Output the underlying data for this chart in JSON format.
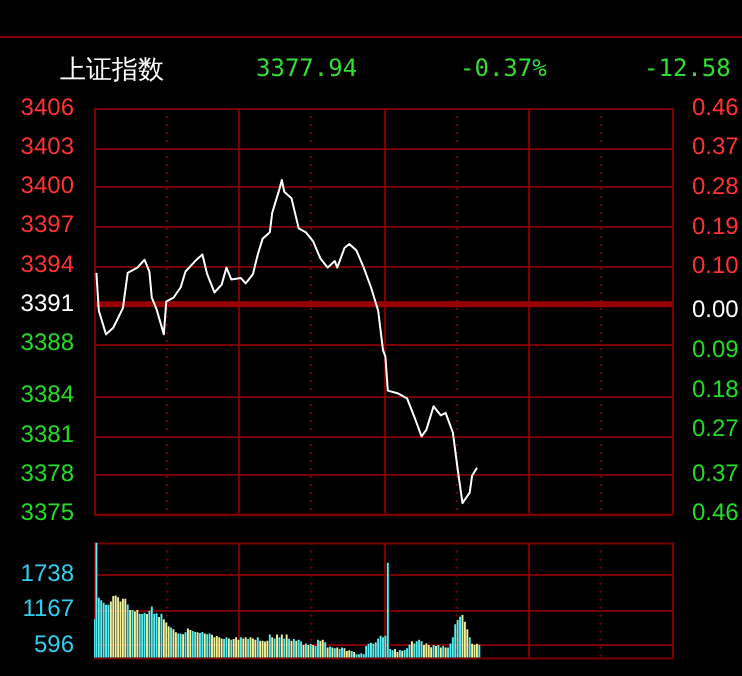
{
  "chart_data": [
    {
      "type": "line",
      "title": "上证指数",
      "annotations": [
        "3377.94",
        "-0.37%",
        "-12.58"
      ],
      "categories": [
        null,
        null,
        null,
        null,
        null,
        null,
        null,
        null,
        null,
        null,
        null,
        null,
        null,
        null,
        null,
        null,
        null,
        null,
        null,
        null,
        null,
        null,
        null,
        null,
        null,
        null,
        null,
        null,
        null,
        null,
        null,
        null,
        null,
        null,
        null,
        null,
        null,
        null,
        null,
        null,
        null,
        null,
        null,
        null,
        null,
        null,
        null,
        null,
        null,
        null,
        null,
        null,
        null,
        null,
        null,
        null,
        null,
        null,
        null,
        null,
        null,
        null,
        null,
        null,
        null,
        null,
        null,
        null,
        null,
        null,
        null,
        null,
        null,
        null,
        null,
        null,
        null,
        null,
        null,
        null,
        null,
        null,
        null,
        null,
        null,
        null,
        null,
        null,
        null,
        null,
        null,
        null,
        null,
        null,
        null,
        null,
        null,
        null,
        null,
        null,
        null,
        null,
        null,
        null,
        null,
        null,
        null,
        null,
        null,
        null,
        null,
        null,
        null,
        null,
        null,
        null,
        null,
        null,
        null,
        null,
        null,
        null,
        null,
        null,
        null,
        null,
        null,
        null,
        null,
        null,
        null,
        null,
        null,
        null,
        null,
        null,
        null,
        null,
        null,
        null,
        null,
        null,
        null,
        null,
        null,
        null,
        null,
        null,
        null,
        null,
        null,
        null,
        null,
        null,
        null,
        null,
        null,
        null,
        null,
        null,
        null,
        null,
        null,
        null,
        null,
        null,
        null,
        null,
        null,
        null,
        null,
        null,
        null,
        null,
        null,
        null,
        null,
        null,
        null,
        null,
        null,
        null,
        null,
        null,
        null,
        null,
        null,
        null,
        null,
        null,
        null,
        null,
        null,
        null,
        null,
        null,
        null,
        null,
        null,
        null,
        null,
        null,
        null,
        null,
        null,
        null,
        null,
        null,
        null,
        null,
        null,
        null,
        null,
        null,
        null,
        null,
        null,
        null,
        null,
        null,
        null,
        null,
        null,
        null,
        null,
        null,
        null,
        null,
        null,
        null,
        null,
        null,
        null,
        null,
        null,
        null,
        null,
        null,
        null,
        null,
        null
      ],
      "series": [
        {
          "color": "#ffffff",
          "values": [
            null,
            3393.4,
            3390.5,
            null,
            null,
            3388.7,
            null,
            null,
            3389.2,
            null,
            null,
            null,
            3390.7,
            null,
            3393.4,
            null,
            null,
            null,
            3393.8,
            null,
            null,
            3394.4,
            null,
            3393.5,
            3391.5,
            null,
            3390.6,
            null,
            null,
            3388.7,
            3391.2,
            null,
            null,
            3391.5,
            null,
            null,
            3392.3,
            null,
            3393.5,
            null,
            null,
            null,
            3394.3,
            null,
            null,
            3394.8,
            null,
            3393.3,
            null,
            null,
            3391.9,
            null,
            null,
            3392.5,
            null,
            3393.8,
            null,
            3392.9,
            null,
            null,
            null,
            3393.0,
            null,
            3392.6,
            null,
            null,
            3393.3,
            null,
            3394.8,
            null,
            3396.0,
            null,
            null,
            3396.5,
            3398.0,
            null,
            null,
            3399.8,
            3400.5,
            3399.6,
            null,
            null,
            3399.1,
            null,
            null,
            3396.8,
            null,
            null,
            3396.5,
            null,
            null,
            3395.8,
            null,
            null,
            3394.5,
            null,
            null,
            3393.8,
            null,
            null,
            3394.3,
            3393.8,
            null,
            null,
            3395.3,
            null,
            3395.6,
            null,
            null,
            3395.1,
            null,
            null,
            3393.8,
            null,
            null,
            3392.3,
            null,
            null,
            3390.5,
            null,
            3387.5,
            3387.0,
            3384.4,
            null,
            null,
            null,
            3384.2,
            null,
            null,
            null,
            3383.8,
            null,
            null,
            3382.4,
            null,
            null,
            3380.9,
            null,
            3381.4,
            null,
            null,
            3383.2,
            null,
            null,
            3382.5,
            null,
            3382.7,
            null,
            null,
            3381.2,
            null,
            3378.4,
            null,
            3375.8,
            null,
            null,
            3376.6,
            3377.9,
            null,
            3378.5,
            null,
            null,
            null,
            null,
            null,
            null,
            null,
            null,
            null,
            null,
            null,
            null,
            null,
            null,
            null,
            null,
            null,
            null,
            null,
            null,
            null,
            null,
            null,
            null,
            null,
            null,
            null,
            null,
            null,
            null,
            null,
            null,
            null,
            null,
            null,
            null,
            null,
            null,
            null,
            null,
            null,
            null,
            null,
            null,
            null,
            null,
            null,
            null,
            null,
            null,
            null,
            null,
            null,
            null,
            null,
            null,
            null,
            null,
            null,
            null,
            null,
            null,
            null,
            null,
            null,
            null,
            null,
            null,
            null,
            null,
            null,
            null,
            null,
            null,
            null,
            null,
            null,
            null,
            null,
            null,
            null
          ]
        }
      ],
      "ylim": [
        3375,
        3406
      ],
      "yticks": [
        3375,
        3378,
        3381,
        3384,
        3388,
        3391,
        3394,
        3397,
        3400,
        3403,
        3406
      ],
      "y2lim": [
        -0.46,
        0.46
      ],
      "y2ticks": [
        {
          "value": -0.46,
          "label": "0.46"
        },
        {
          "value": -0.37,
          "label": "0.37"
        },
        {
          "value": -0.27,
          "label": "0.27"
        },
        {
          "value": -0.18,
          "label": "0.18"
        },
        {
          "value": -0.09,
          "label": "0.09"
        },
        {
          "value": 0,
          "label": "0.00"
        },
        {
          "value": 0.1,
          "label": "0.10"
        },
        {
          "value": 0.19,
          "label": "0.19"
        },
        {
          "value": 0.28,
          "label": "0.28"
        },
        {
          "value": 0.37,
          "label": "0.37"
        },
        {
          "value": 0.46,
          "label": "0.46"
        }
      ],
      "ref_lines": [
        {
          "axis": "y",
          "value": 3391,
          "color": "#990000"
        }
      ],
      "grid": true,
      "legend": false,
      "marker": "none",
      "line_style": "solid",
      "tick_labels": "y"
    },
    {
      "type": "bar",
      "categories": [
        null,
        null,
        null,
        null,
        null,
        null,
        null,
        null,
        null,
        null,
        null,
        null,
        null,
        null,
        null,
        null,
        null,
        null,
        null,
        null,
        null,
        null,
        null,
        null,
        null,
        null,
        null,
        null,
        null,
        null,
        null,
        null,
        null,
        null,
        null,
        null,
        null,
        null,
        null,
        null,
        null,
        null,
        null,
        null,
        null,
        null,
        null,
        null,
        null,
        null,
        null,
        null,
        null,
        null,
        null,
        null,
        null,
        null,
        null,
        null,
        null,
        null,
        null,
        null,
        null,
        null,
        null,
        null,
        null,
        null,
        null,
        null,
        null,
        null,
        null,
        null,
        null,
        null,
        null,
        null,
        null,
        null,
        null,
        null,
        null,
        null,
        null,
        null,
        null,
        null,
        null,
        null,
        null,
        null,
        null,
        null,
        null,
        null,
        null,
        null,
        null,
        null,
        null,
        null,
        null,
        null,
        null,
        null,
        null,
        null,
        null,
        null,
        null,
        null,
        null,
        null,
        null,
        null,
        null,
        null,
        null,
        null,
        null,
        null,
        null,
        null,
        null,
        null,
        null,
        null,
        null,
        null,
        null,
        null,
        null,
        null,
        null,
        null,
        null,
        null,
        null,
        null,
        null,
        null,
        null,
        null,
        null,
        null,
        null,
        null,
        null,
        null,
        null,
        null,
        null,
        null,
        null,
        null,
        null,
        null,
        null,
        null,
        null,
        null,
        null,
        null,
        null,
        null,
        null,
        null,
        null,
        null,
        null,
        null,
        null,
        null,
        null,
        null,
        null,
        null,
        null,
        null,
        null,
        null,
        null,
        null,
        null,
        null,
        null,
        null,
        null,
        null,
        null,
        null,
        null,
        null,
        null,
        null,
        null,
        null,
        null,
        null,
        null,
        null,
        null,
        null,
        null,
        null,
        null,
        null,
        null,
        null,
        null,
        null,
        null,
        null,
        null,
        null,
        null,
        null,
        null,
        null,
        null,
        null,
        null,
        null,
        null,
        null,
        null,
        null,
        null,
        null,
        null,
        null,
        null,
        null,
        null,
        null,
        null,
        null,
        null
      ],
      "values": [
        1013,
        2260,
        1363,
        1320,
        1280,
        1246,
        1246,
        1300,
        1388,
        1400,
        1370,
        1300,
        1346,
        1346,
        1250,
        1163,
        1163,
        1140,
        1163,
        1100,
        1096,
        1120,
        1096,
        1150,
        1221,
        1100,
        1110,
        1050,
        1100,
        1013,
        960,
        900,
        880,
        850,
        800,
        780,
        780,
        770,
        800,
        863,
        840,
        820,
        805,
        800,
        790,
        805,
        780,
        770,
        780,
        760,
        720,
        740,
        721,
        700,
        690,
        721,
        700,
        680,
        690,
        721,
        680,
        721,
        700,
        721,
        690,
        721,
        700,
        680,
        721,
        663,
        663,
        650,
        663,
        763,
        720,
        700,
        763,
        720,
        763,
        700,
        763,
        696,
        663,
        690,
        663,
        680,
        650,
        596,
        620,
        596,
        610,
        596,
        580,
        680,
        660,
        680,
        640,
        554,
        570,
        554,
        540,
        554,
        530,
        554,
        540,
        496,
        510,
        496,
        480,
        446,
        446,
        460,
        446,
        580,
        613,
        630,
        613,
        640,
        700,
        746,
        720,
        746,
        1930,
        529,
        510,
        529,
        480,
        513,
        500,
        513,
        540,
        600,
        654,
        620,
        654,
        680,
        654,
        596,
        620,
        596,
        560,
        596,
        580,
        596,
        554,
        580,
        554,
        554,
        620,
        721,
        930,
        1000,
        1055,
        1080,
        971,
        850,
        721,
        613,
        600,
        613,
        600,
        null,
        null,
        null,
        null,
        null,
        null,
        null,
        null,
        null,
        null,
        null,
        null,
        null,
        null,
        null,
        null,
        null,
        null,
        null,
        null,
        null,
        null,
        null,
        null,
        null,
        null,
        null,
        null,
        null,
        null,
        null,
        null,
        null,
        null,
        null,
        null,
        null,
        null,
        null,
        null,
        null,
        null,
        null,
        null,
        null,
        null,
        null,
        null,
        null,
        null,
        null,
        null,
        null,
        null,
        null,
        null,
        null,
        null,
        null,
        null,
        null,
        null,
        null,
        null,
        null,
        null,
        null,
        null,
        null,
        null,
        null,
        null,
        null,
        null,
        null,
        null,
        null,
        null,
        null,
        null
      ],
      "colors": [
        "#55eef5",
        "#55eef5",
        "#55eef5",
        "#55eef5",
        "#55eef5",
        "#55eef5",
        "#55eef5",
        "#f2f29a",
        "#f2f29a",
        "#f2f29a",
        "#f2f29a",
        "#f2f29a",
        "#f2f29a",
        "#f2f29a",
        "#55eef5",
        "#f2f29a",
        "#55eef5",
        "#f2f29a",
        "#f2f29a",
        "#55eef5",
        "#55eef5",
        "#55eef5",
        "#f2f29a",
        "#55eef5",
        "#55eef5",
        "#55eef5",
        "#55eef5",
        "#f2f29a",
        "#55eef5",
        "#f2f29a",
        "#f2f29a",
        "#f2f29a",
        "#55eef5",
        "#f2f29a",
        "#f2f29a",
        "#55eef5",
        "#55eef5",
        "#f2f29a",
        "#55eef5",
        "#f2f29a",
        "#f2f29a",
        "#55eef5",
        "#55eef5",
        "#f2f29a",
        "#55eef5",
        "#55eef5",
        "#f2f29a",
        "#55eef5",
        "#55eef5",
        "#f2f29a",
        "#f2f29a",
        "#f2f29a",
        "#f2f29a",
        "#f2f29a",
        "#55eef5",
        "#55eef5",
        "#f2f29a",
        "#55eef5",
        "#f2f29a",
        "#f2f29a",
        "#f2f29a",
        "#55eef5",
        "#f2f29a",
        "#f2f29a",
        "#55eef5",
        "#f2f29a",
        "#f2f29a",
        "#f2f29a",
        "#55eef5",
        "#f2f29a",
        "#f2f29a",
        "#f2f29a",
        "#f2f29a",
        "#55eef5",
        "#f2f29a",
        "#55eef5",
        "#f2f29a",
        "#55eef5",
        "#f2f29a",
        "#55eef5",
        "#f2f29a",
        "#55eef5",
        "#f2f29a",
        "#55eef5",
        "#f2f29a",
        "#55eef5",
        "#55eef5",
        "#f2f29a",
        "#55eef5",
        "#f2f29a",
        "#55eef5",
        "#f2f29a",
        "#55eef5",
        "#55eef5",
        "#f2f29a",
        "#f2f29a",
        "#55eef5",
        "#f2f29a",
        "#55eef5",
        "#f2f29a",
        "#55eef5",
        "#f2f29a",
        "#55eef5",
        "#55eef5",
        "#f2f29a",
        "#f2f29a",
        "#f2f29a",
        "#55eef5",
        "#f2f29a",
        "#55eef5",
        "#55eef5",
        "#55eef5",
        "#55eef5",
        "#55eef5",
        "#55eef5",
        "#55eef5",
        "#55eef5",
        "#55eef5",
        "#55eef5",
        "#55eef5",
        "#55eef5",
        "#55eef5",
        "#55eef5",
        "#55eef5",
        "#55eef5",
        "#f2f29a",
        "#f2f29a",
        "#55eef5",
        "#f2f29a",
        "#55eef5",
        "#55eef5",
        "#55eef5",
        "#f2f29a",
        "#55eef5",
        "#55eef5",
        "#55eef5",
        "#55eef5",
        "#f2f29a",
        "#f2f29a",
        "#f2f29a",
        "#f2f29a",
        "#55eef5",
        "#f2f29a",
        "#55eef5",
        "#f2f29a",
        "#55eef5",
        "#f2f29a",
        "#55eef5",
        "#55eef5",
        "#55eef5",
        "#55eef5",
        "#55eef5",
        "#55eef5",
        "#f2f29a",
        "#f2f29a",
        "#f2f29a",
        "#55eef5",
        "#f2f29a",
        "#f2f29a",
        "#f2f29a",
        "#55eef5",
        null,
        null,
        null,
        null,
        null,
        null,
        null,
        null,
        null,
        null,
        null,
        null,
        null,
        null,
        null,
        null,
        null,
        null,
        null,
        null,
        null,
        null,
        null,
        null,
        null,
        null,
        null,
        null,
        null,
        null,
        null,
        null,
        null,
        null,
        null,
        null,
        null,
        null,
        null,
        null,
        null,
        null,
        null,
        null,
        null,
        null,
        null,
        null,
        null,
        null,
        null,
        null,
        null,
        null,
        null,
        null,
        null,
        null,
        null,
        null,
        null,
        null,
        null,
        null,
        null,
        null,
        null,
        null,
        null,
        null,
        null,
        null,
        null,
        null,
        null,
        null,
        null,
        null,
        null,
        null
      ],
      "ylim": [
        390,
        2260
      ],
      "yticks": [
        596,
        1167,
        1738
      ],
      "grid": true,
      "legend": false,
      "tick_labels": "y"
    }
  ]
}
